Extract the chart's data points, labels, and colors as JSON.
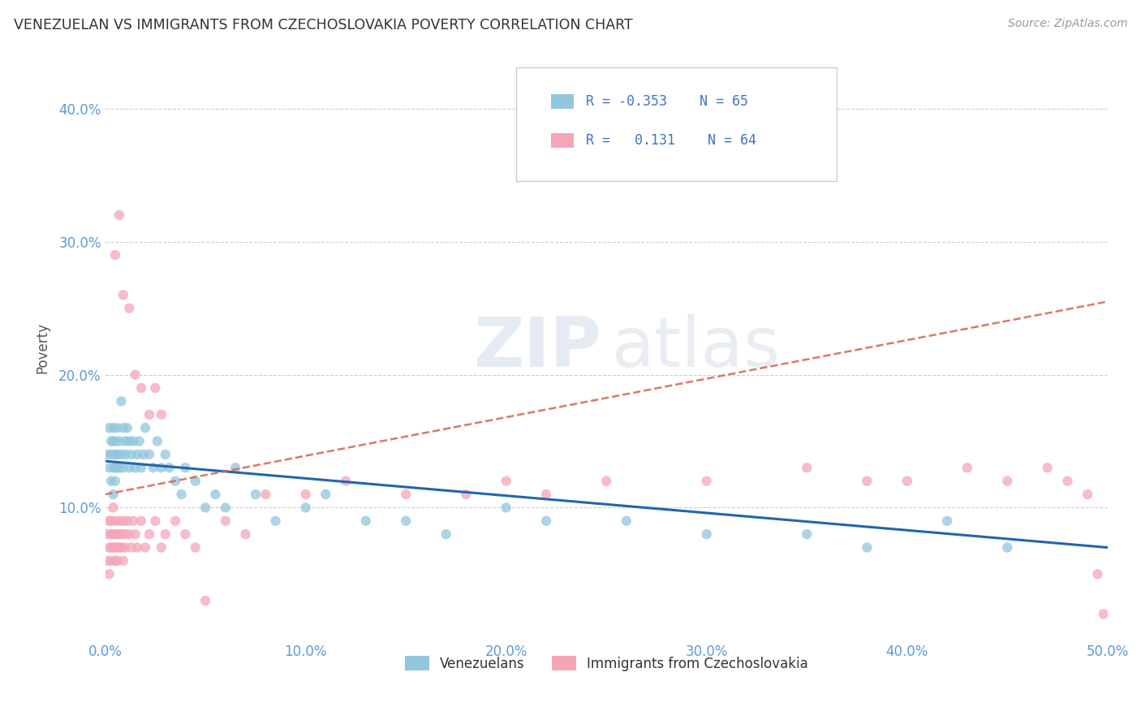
{
  "title": "VENEZUELAN VS IMMIGRANTS FROM CZECHOSLOVAKIA POVERTY CORRELATION CHART",
  "source": "Source: ZipAtlas.com",
  "ylabel": "Poverty",
  "xlim": [
    0.0,
    0.5
  ],
  "ylim": [
    0.0,
    0.44
  ],
  "xticks": [
    0.0,
    0.1,
    0.2,
    0.3,
    0.4,
    0.5
  ],
  "yticks": [
    0.1,
    0.2,
    0.3,
    0.4
  ],
  "ytick_labels": [
    "10.0%",
    "20.0%",
    "30.0%",
    "40.0%"
  ],
  "xtick_labels": [
    "0.0%",
    "10.0%",
    "20.0%",
    "30.0%",
    "40.0%",
    "50.0%"
  ],
  "blue_color": "#92c5de",
  "pink_color": "#f4a6b8",
  "blue_line_color": "#2166ac",
  "pink_line_color": "#d6604d",
  "watermark_zip": "ZIP",
  "watermark_atlas": "atlas",
  "venezuelan_x": [
    0.001,
    0.002,
    0.002,
    0.003,
    0.003,
    0.003,
    0.004,
    0.004,
    0.004,
    0.004,
    0.005,
    0.005,
    0.005,
    0.005,
    0.006,
    0.006,
    0.006,
    0.007,
    0.007,
    0.008,
    0.008,
    0.009,
    0.009,
    0.01,
    0.01,
    0.011,
    0.012,
    0.012,
    0.013,
    0.014,
    0.015,
    0.016,
    0.017,
    0.018,
    0.019,
    0.02,
    0.022,
    0.024,
    0.026,
    0.028,
    0.03,
    0.032,
    0.035,
    0.038,
    0.04,
    0.045,
    0.05,
    0.055,
    0.06,
    0.065,
    0.075,
    0.085,
    0.1,
    0.11,
    0.13,
    0.15,
    0.17,
    0.2,
    0.22,
    0.26,
    0.3,
    0.35,
    0.38,
    0.42,
    0.45
  ],
  "venezuelan_y": [
    0.14,
    0.13,
    0.16,
    0.15,
    0.12,
    0.14,
    0.13,
    0.15,
    0.16,
    0.11,
    0.14,
    0.13,
    0.12,
    0.15,
    0.14,
    0.13,
    0.16,
    0.13,
    0.15,
    0.18,
    0.14,
    0.13,
    0.16,
    0.15,
    0.14,
    0.16,
    0.15,
    0.13,
    0.14,
    0.15,
    0.13,
    0.14,
    0.15,
    0.13,
    0.14,
    0.16,
    0.14,
    0.13,
    0.15,
    0.13,
    0.14,
    0.13,
    0.12,
    0.11,
    0.13,
    0.12,
    0.1,
    0.11,
    0.1,
    0.13,
    0.11,
    0.09,
    0.1,
    0.11,
    0.09,
    0.09,
    0.08,
    0.1,
    0.09,
    0.09,
    0.08,
    0.08,
    0.07,
    0.09,
    0.07
  ],
  "czech_x": [
    0.001,
    0.001,
    0.002,
    0.002,
    0.002,
    0.003,
    0.003,
    0.003,
    0.003,
    0.004,
    0.004,
    0.004,
    0.005,
    0.005,
    0.005,
    0.005,
    0.006,
    0.006,
    0.007,
    0.007,
    0.007,
    0.008,
    0.008,
    0.009,
    0.009,
    0.01,
    0.01,
    0.011,
    0.012,
    0.013,
    0.014,
    0.015,
    0.016,
    0.018,
    0.02,
    0.022,
    0.025,
    0.028,
    0.03,
    0.035,
    0.04,
    0.045,
    0.05,
    0.06,
    0.07,
    0.08,
    0.1,
    0.12,
    0.15,
    0.18,
    0.2,
    0.22,
    0.25,
    0.3,
    0.35,
    0.38,
    0.4,
    0.43,
    0.45,
    0.47,
    0.48,
    0.49,
    0.495,
    0.498
  ],
  "czech_y": [
    0.06,
    0.08,
    0.07,
    0.09,
    0.05,
    0.08,
    0.07,
    0.06,
    0.09,
    0.07,
    0.08,
    0.1,
    0.06,
    0.08,
    0.07,
    0.09,
    0.07,
    0.06,
    0.08,
    0.07,
    0.09,
    0.08,
    0.07,
    0.06,
    0.09,
    0.07,
    0.08,
    0.09,
    0.08,
    0.07,
    0.09,
    0.08,
    0.07,
    0.09,
    0.07,
    0.08,
    0.09,
    0.07,
    0.08,
    0.09,
    0.08,
    0.07,
    0.03,
    0.09,
    0.08,
    0.11,
    0.11,
    0.12,
    0.11,
    0.11,
    0.12,
    0.11,
    0.12,
    0.12,
    0.13,
    0.12,
    0.12,
    0.13,
    0.12,
    0.13,
    0.12,
    0.11,
    0.05,
    0.02
  ],
  "czech_outlier_x": [
    0.005,
    0.007,
    0.009,
    0.012,
    0.015,
    0.018,
    0.022,
    0.025,
    0.028
  ],
  "czech_outlier_y": [
    0.29,
    0.32,
    0.26,
    0.25,
    0.2,
    0.19,
    0.17,
    0.19,
    0.17
  ],
  "ven_line_x0": 0.0,
  "ven_line_x1": 0.5,
  "ven_line_y0": 0.135,
  "ven_line_y1": 0.07,
  "cze_line_x0": 0.0,
  "cze_line_x1": 0.5,
  "cze_line_y0": 0.11,
  "cze_line_y1": 0.255
}
